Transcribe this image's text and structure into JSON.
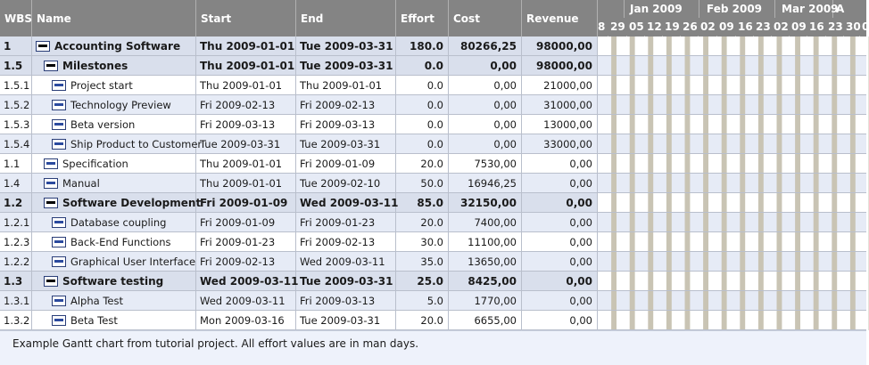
{
  "columns": {
    "wbs": "WBS",
    "name": "Name",
    "start": "Start",
    "end": "End",
    "effort": "Effort",
    "cost": "Cost",
    "revenue": "Revenue"
  },
  "timeline": {
    "months": [
      "Jan 2009",
      "Feb 2009",
      "Mar 2009",
      "A"
    ],
    "weeks": [
      "8",
      "29",
      "05",
      "12",
      "19",
      "26",
      "02",
      "09",
      "16",
      "23",
      "02",
      "09",
      "16",
      "23",
      "30",
      "0"
    ]
  },
  "rows": [
    {
      "wbs": "1",
      "name": "Accounting Software",
      "start": "Thu 2009-01-01",
      "end": "Tue 2009-03-31",
      "effort": "180.0",
      "cost": "80266,25",
      "revenue": "98000,00",
      "kind": "summary",
      "level": 0
    },
    {
      "wbs": "1.5",
      "name": "Milestones",
      "start": "Thu 2009-01-01",
      "end": "Tue 2009-03-31",
      "effort": "0.0",
      "cost": "0,00",
      "revenue": "98000,00",
      "kind": "summary",
      "level": 1
    },
    {
      "wbs": "1.5.1",
      "name": "Project start",
      "start": "Thu 2009-01-01",
      "end": "Thu 2009-01-01",
      "effort": "0.0",
      "cost": "0,00",
      "revenue": "21000,00",
      "kind": "task",
      "level": 2
    },
    {
      "wbs": "1.5.2",
      "name": "Technology Preview",
      "start": "Fri 2009-02-13",
      "end": "Fri 2009-02-13",
      "effort": "0.0",
      "cost": "0,00",
      "revenue": "31000,00",
      "kind": "task",
      "level": 2
    },
    {
      "wbs": "1.5.3",
      "name": "Beta version",
      "start": "Fri 2009-03-13",
      "end": "Fri 2009-03-13",
      "effort": "0.0",
      "cost": "0,00",
      "revenue": "13000,00",
      "kind": "task",
      "level": 2
    },
    {
      "wbs": "1.5.4",
      "name": "Ship Product to Customer",
      "start": "Tue 2009-03-31",
      "end": "Tue 2009-03-31",
      "effort": "0.0",
      "cost": "0,00",
      "revenue": "33000,00",
      "kind": "task",
      "level": 2
    },
    {
      "wbs": "1.1",
      "name": "Specification",
      "start": "Thu 2009-01-01",
      "end": "Fri 2009-01-09",
      "effort": "20.0",
      "cost": "7530,00",
      "revenue": "0,00",
      "kind": "task",
      "level": 1
    },
    {
      "wbs": "1.4",
      "name": "Manual",
      "start": "Thu 2009-01-01",
      "end": "Tue 2009-02-10",
      "effort": "50.0",
      "cost": "16946,25",
      "revenue": "0,00",
      "kind": "task",
      "level": 1
    },
    {
      "wbs": "1.2",
      "name": "Software Development",
      "start": "Fri 2009-01-09",
      "end": "Wed 2009-03-11",
      "effort": "85.0",
      "cost": "32150,00",
      "revenue": "0,00",
      "kind": "summary",
      "level": 1
    },
    {
      "wbs": "1.2.1",
      "name": "Database coupling",
      "start": "Fri 2009-01-09",
      "end": "Fri 2009-01-23",
      "effort": "20.0",
      "cost": "7400,00",
      "revenue": "0,00",
      "kind": "task",
      "level": 2
    },
    {
      "wbs": "1.2.3",
      "name": "Back-End Functions",
      "start": "Fri 2009-01-23",
      "end": "Fri 2009-02-13",
      "effort": "30.0",
      "cost": "11100,00",
      "revenue": "0,00",
      "kind": "task",
      "level": 2
    },
    {
      "wbs": "1.2.2",
      "name": "Graphical User Interface",
      "start": "Fri 2009-02-13",
      "end": "Wed 2009-03-11",
      "effort": "35.0",
      "cost": "13650,00",
      "revenue": "0,00",
      "kind": "task",
      "level": 2
    },
    {
      "wbs": "1.3",
      "name": "Software testing",
      "start": "Wed 2009-03-11",
      "end": "Tue 2009-03-31",
      "effort": "25.0",
      "cost": "8425,00",
      "revenue": "0,00",
      "kind": "summary",
      "level": 1
    },
    {
      "wbs": "1.3.1",
      "name": "Alpha Test",
      "start": "Wed 2009-03-11",
      "end": "Fri 2009-03-13",
      "effort": "5.0",
      "cost": "1770,00",
      "revenue": "0,00",
      "kind": "task",
      "level": 2
    },
    {
      "wbs": "1.3.2",
      "name": "Beta Test",
      "start": "Mon 2009-03-16",
      "end": "Tue 2009-03-31",
      "effort": "20.0",
      "cost": "6655,00",
      "revenue": "0,00",
      "kind": "task",
      "level": 2
    }
  ],
  "footer_text": "Example Gantt chart from tutorial project. All effort values are in man days.",
  "colors": {
    "bar_fill": "#2b4a9e",
    "bar_border": "#0c1a4a",
    "stripe": "#c9c4b4",
    "header": "#848484",
    "milestone": "#000000"
  }
}
